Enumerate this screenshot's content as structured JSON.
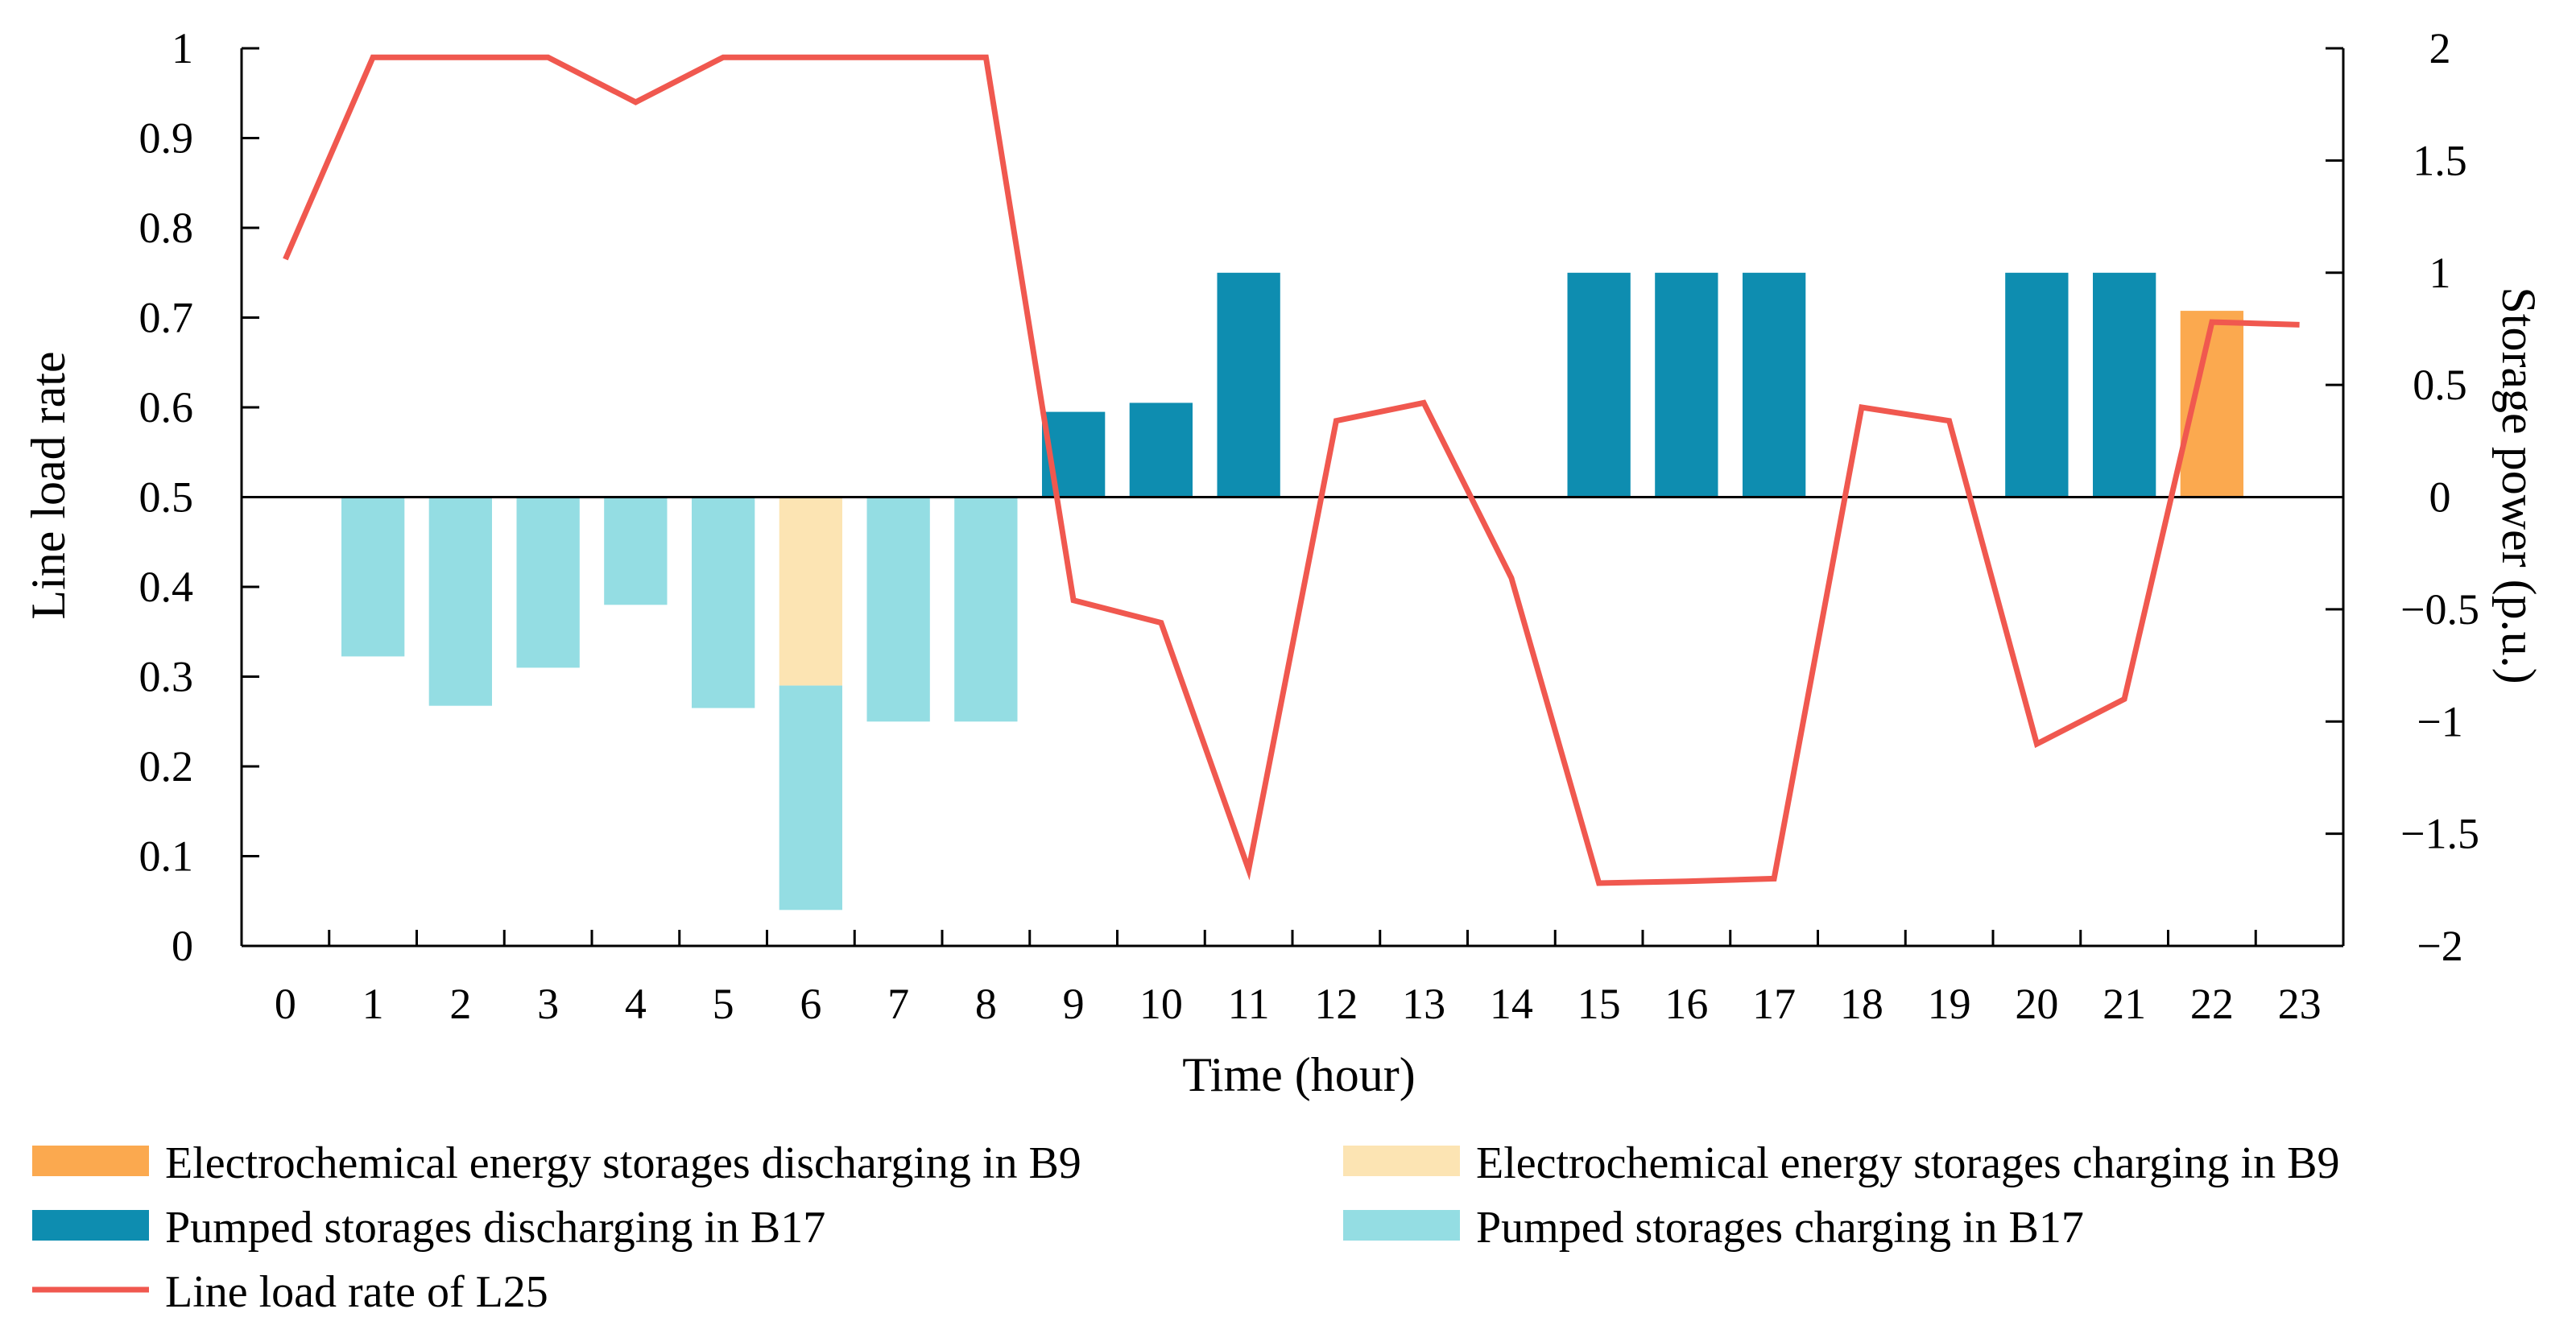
{
  "chart_data": {
    "type": "bar",
    "title": "",
    "xlabel": "Time (hour)",
    "ylabel_left": "Line load rate",
    "ylabel_right": "Storage power (p.u.)",
    "x": [
      0,
      1,
      2,
      3,
      4,
      5,
      6,
      7,
      8,
      9,
      10,
      11,
      12,
      13,
      14,
      15,
      16,
      17,
      18,
      19,
      20,
      21,
      22,
      23
    ],
    "x_tick_labels": [
      "0",
      "1",
      "2",
      "3",
      "4",
      "5",
      "6",
      "7",
      "8",
      "9",
      "10",
      "11",
      "12",
      "13",
      "14",
      "15",
      "16",
      "17",
      "18",
      "19",
      "20",
      "21",
      "22",
      "23"
    ],
    "ylim_left": [
      0,
      1
    ],
    "ylim_right": [
      -2,
      2
    ],
    "y_left_ticks": [
      "0",
      "0.1",
      "0.2",
      "0.3",
      "0.4",
      "0.5",
      "0.6",
      "0.7",
      "0.8",
      "0.9",
      "1"
    ],
    "y_right_ticks": [
      "−2",
      "−1.5",
      "−1",
      "−0.5",
      "0",
      "0.5",
      "1",
      "1.5",
      "2"
    ],
    "grid": false,
    "legend_position": "bottom",
    "series": [
      {
        "name": "Electrochemical energy storages discharging in B9",
        "kind": "bar",
        "axis": "right",
        "color": "#FBA94F",
        "values": [
          0,
          0,
          0,
          0,
          0,
          0,
          0,
          0,
          0,
          0,
          0,
          0,
          0,
          0,
          0,
          0,
          0,
          0,
          0,
          0,
          0,
          0,
          0.83,
          0
        ]
      },
      {
        "name": "Electrochemical energy storages charging in B9",
        "kind": "bar",
        "axis": "right",
        "color": "#FCE4B3",
        "values": [
          0,
          0,
          0,
          0,
          0,
          0,
          -0.84,
          0,
          0,
          0,
          0,
          0,
          0,
          0,
          0,
          0,
          0,
          0,
          0,
          0,
          0,
          0,
          0,
          0
        ]
      },
      {
        "name": "Pumped storages discharging in B17",
        "kind": "bar",
        "axis": "right",
        "color": "#0E8DB0",
        "values": [
          0,
          0,
          0,
          0,
          0,
          0,
          0,
          0,
          0,
          0.38,
          0.42,
          1,
          0,
          0,
          0,
          1,
          1,
          1,
          0,
          0,
          1,
          1,
          0,
          0
        ]
      },
      {
        "name": "Pumped storages charging in B17",
        "kind": "bar",
        "axis": "right",
        "color": "#94DDE3",
        "values": [
          0,
          -0.71,
          -0.93,
          -0.76,
          -0.48,
          -0.94,
          -1,
          -1,
          -1,
          0,
          0,
          0,
          0,
          0,
          0,
          0,
          0,
          0,
          0,
          0,
          0,
          0,
          0,
          0
        ]
      },
      {
        "name": "Line load rate of L25",
        "kind": "line",
        "axis": "left",
        "color": "#F0584F",
        "values": [
          0.765,
          0.99,
          0.99,
          0.99,
          0.94,
          0.99,
          0.99,
          0.99,
          0.99,
          0.385,
          0.36,
          0.085,
          0.585,
          0.605,
          0.41,
          0.07,
          0.072,
          0.075,
          0.6,
          0.585,
          0.225,
          0.275,
          0.695,
          0.692
        ]
      }
    ]
  }
}
